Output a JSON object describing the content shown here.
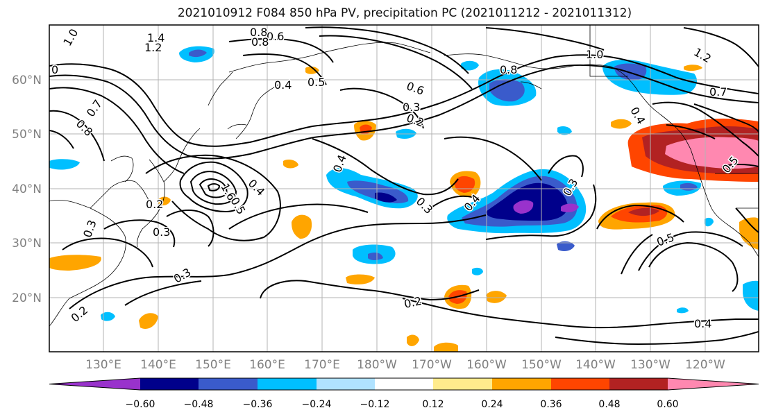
{
  "title": "2021010912 F084 850 hPa PV, precipitation PC (2021011212 - 2021011312)",
  "lat_labels": [
    "60°N",
    "50°N",
    "40°N",
    "30°N",
    "20°N"
  ],
  "lon_labels": [
    "130°E",
    "140°E",
    "150°E",
    "160°E",
    "170°E",
    "180°W",
    "170°W",
    "160°W",
    "150°W",
    "140°W",
    "130°W",
    "120°W"
  ],
  "colorbar": {
    "colors": [
      "#9932CC",
      "#00008B",
      "#3A5BCB",
      "#00BFFF",
      "#B0E2FF",
      "#FFFFFF",
      "#FFEB8C",
      "#FFA500",
      "#FF4500",
      "#B22222",
      "#FF88B0"
    ],
    "tick_labels": [
      "−0.60",
      "−0.48",
      "−0.36",
      "−0.24",
      "−0.12",
      "0.12",
      "0.24",
      "0.36",
      "0.48",
      "0.60"
    ]
  },
  "contour_labels": [
    {
      "text": "1.0"
    },
    {
      "text": "1.4"
    },
    {
      "text": "1.2"
    },
    {
      "text": "0.8"
    },
    {
      "text": "0.6"
    },
    {
      "text": "0.8"
    },
    {
      "text": "0"
    },
    {
      "text": "0.7"
    },
    {
      "text": "0.8"
    },
    {
      "text": "0.4"
    },
    {
      "text": "0.5"
    },
    {
      "text": "0.6"
    },
    {
      "text": "0.2"
    },
    {
      "text": "0.8"
    },
    {
      "text": "1.0"
    },
    {
      "text": "1.2"
    },
    {
      "text": "0.7"
    },
    {
      "text": "0.4"
    },
    {
      "text": "0.3"
    },
    {
      "text": "0.2"
    },
    {
      "text": "0.3"
    },
    {
      "text": "0.4"
    },
    {
      "text": "1.6"
    },
    {
      "text": "0.5"
    },
    {
      "text": "0.3"
    },
    {
      "text": "0.4"
    },
    {
      "text": "0.3"
    },
    {
      "text": "0.3"
    },
    {
      "text": "0.2"
    },
    {
      "text": "0.2"
    },
    {
      "text": "0.5"
    },
    {
      "text": "0.4"
    },
    {
      "text": "0.3"
    },
    {
      "text": "0.5"
    },
    {
      "text": "0.4"
    }
  ],
  "colors": {
    "contour": "#000000",
    "grid": "#b3b3b3",
    "axis_label": "#808080"
  }
}
